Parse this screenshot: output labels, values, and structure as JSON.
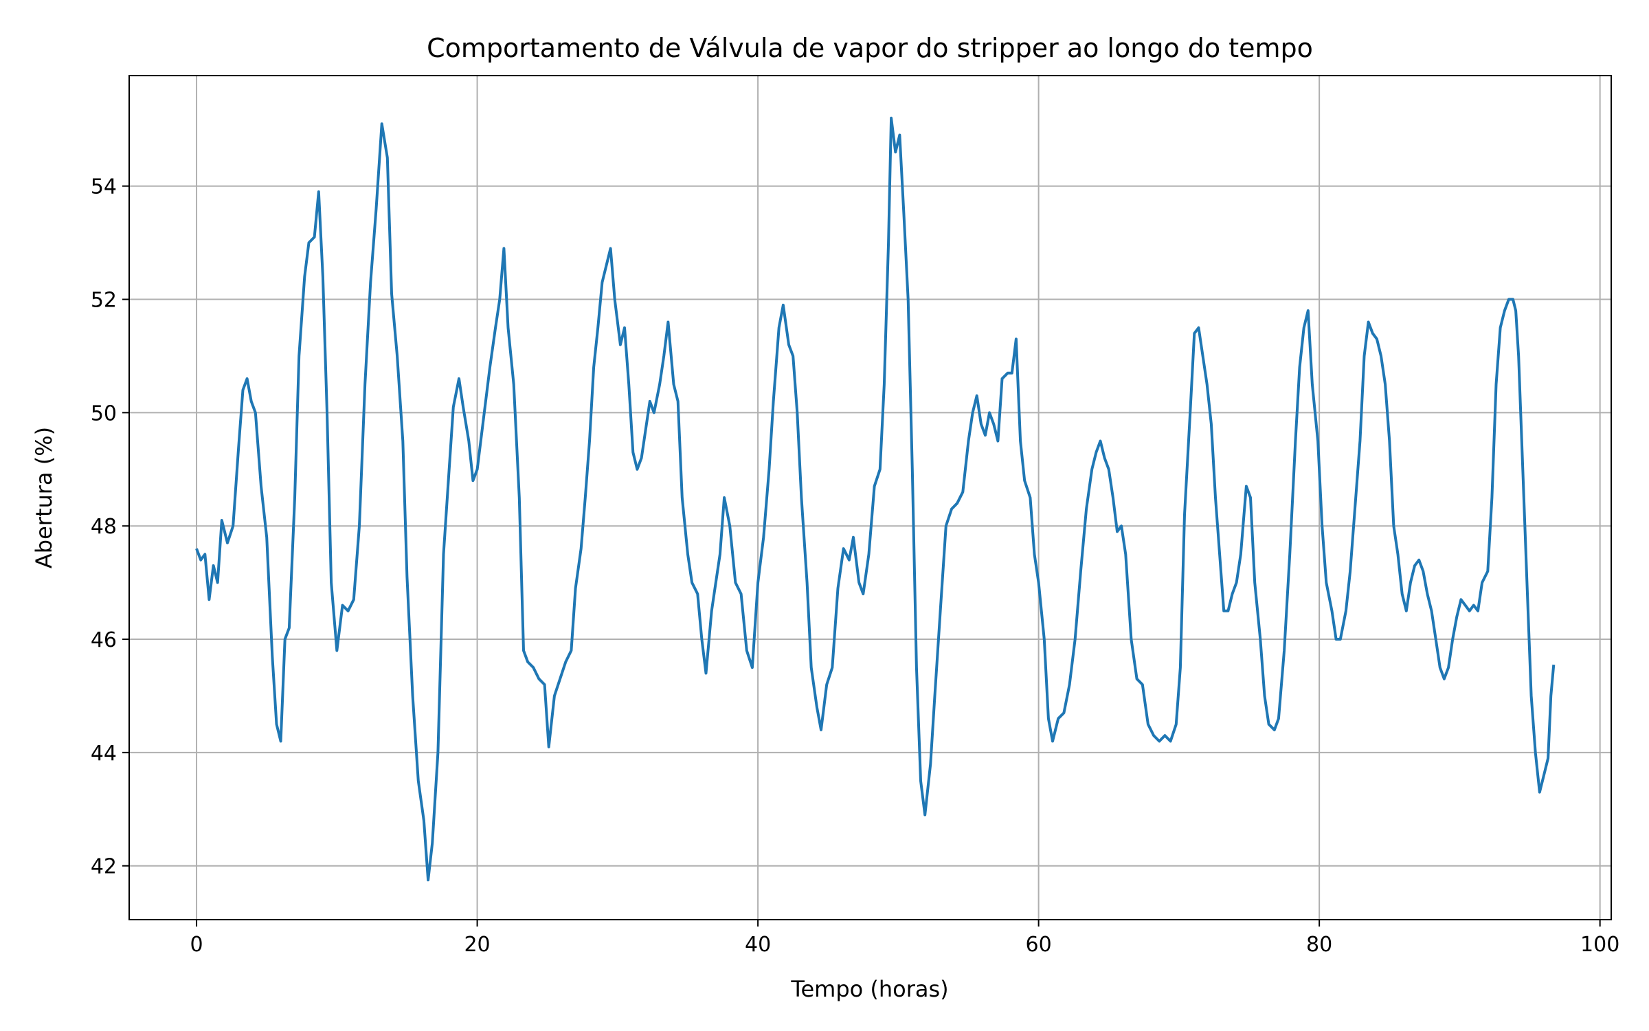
{
  "chart_data": {
    "type": "line",
    "title": "Comportamento de Válvula de vapor do stripper ao longo do tempo",
    "xlabel": "Tempo (horas)",
    "ylabel": "Abertura (%)",
    "xlim": [
      -4.8,
      100.8
    ],
    "ylim": [
      41.05,
      55.95
    ],
    "xticks": [
      0,
      20,
      40,
      60,
      80,
      100
    ],
    "yticks": [
      42,
      44,
      46,
      48,
      50,
      52,
      54
    ],
    "grid": true,
    "series": [
      {
        "color": "#1f77b4",
        "points": [
          [
            0,
            47.6
          ],
          [
            0.3,
            47.4
          ],
          [
            0.6,
            47.5
          ],
          [
            0.9,
            46.7
          ],
          [
            1.2,
            47.3
          ],
          [
            1.5,
            47.0
          ],
          [
            1.8,
            48.1
          ],
          [
            2.2,
            47.7
          ],
          [
            2.6,
            48.0
          ],
          [
            3.0,
            49.4
          ],
          [
            3.3,
            50.4
          ],
          [
            3.6,
            50.6
          ],
          [
            3.9,
            50.2
          ],
          [
            4.2,
            50.0
          ],
          [
            4.6,
            48.7
          ],
          [
            5.0,
            47.8
          ],
          [
            5.4,
            45.7
          ],
          [
            5.7,
            44.5
          ],
          [
            6.0,
            44.2
          ],
          [
            6.3,
            46.0
          ],
          [
            6.6,
            46.2
          ],
          [
            7.0,
            48.5
          ],
          [
            7.3,
            51.0
          ],
          [
            7.7,
            52.4
          ],
          [
            8.0,
            53.0
          ],
          [
            8.4,
            53.1
          ],
          [
            8.7,
            53.9
          ],
          [
            9.0,
            52.4
          ],
          [
            9.3,
            50.0
          ],
          [
            9.6,
            47.0
          ],
          [
            10.0,
            45.8
          ],
          [
            10.4,
            46.6
          ],
          [
            10.8,
            46.5
          ],
          [
            11.2,
            46.7
          ],
          [
            11.6,
            48.0
          ],
          [
            12.0,
            50.5
          ],
          [
            12.4,
            52.3
          ],
          [
            12.8,
            53.6
          ],
          [
            13.2,
            55.1
          ],
          [
            13.6,
            54.5
          ],
          [
            13.9,
            52.1
          ],
          [
            14.3,
            51.0
          ],
          [
            14.7,
            49.5
          ],
          [
            15.0,
            47.1
          ],
          [
            15.4,
            45.0
          ],
          [
            15.8,
            43.5
          ],
          [
            16.2,
            42.8
          ],
          [
            16.5,
            41.75
          ],
          [
            16.8,
            42.4
          ],
          [
            17.2,
            44.0
          ],
          [
            17.6,
            47.5
          ],
          [
            18.0,
            49.0
          ],
          [
            18.3,
            50.1
          ],
          [
            18.7,
            50.6
          ],
          [
            19.0,
            50.1
          ],
          [
            19.4,
            49.5
          ],
          [
            19.7,
            48.8
          ],
          [
            20.0,
            49.0
          ],
          [
            20.5,
            50.0
          ],
          [
            20.9,
            50.8
          ],
          [
            21.3,
            51.5
          ],
          [
            21.6,
            52.0
          ],
          [
            21.9,
            52.9
          ],
          [
            22.2,
            51.5
          ],
          [
            22.6,
            50.5
          ],
          [
            23.0,
            48.5
          ],
          [
            23.3,
            45.8
          ],
          [
            23.6,
            45.6
          ],
          [
            24.0,
            45.5
          ],
          [
            24.4,
            45.3
          ],
          [
            24.8,
            45.2
          ],
          [
            25.1,
            44.1
          ],
          [
            25.5,
            45.0
          ],
          [
            25.9,
            45.3
          ],
          [
            26.3,
            45.6
          ],
          [
            26.7,
            45.8
          ],
          [
            27.0,
            46.9
          ],
          [
            27.4,
            47.6
          ],
          [
            27.7,
            48.5
          ],
          [
            28.0,
            49.5
          ],
          [
            28.3,
            50.8
          ],
          [
            28.6,
            51.5
          ],
          [
            28.9,
            52.3
          ],
          [
            29.2,
            52.6
          ],
          [
            29.5,
            52.9
          ],
          [
            29.8,
            52.0
          ],
          [
            30.2,
            51.2
          ],
          [
            30.5,
            51.5
          ],
          [
            30.8,
            50.5
          ],
          [
            31.1,
            49.3
          ],
          [
            31.4,
            49.0
          ],
          [
            31.7,
            49.2
          ],
          [
            32.0,
            49.7
          ],
          [
            32.3,
            50.2
          ],
          [
            32.6,
            50.0
          ],
          [
            33.0,
            50.5
          ],
          [
            33.3,
            51.0
          ],
          [
            33.6,
            51.6
          ],
          [
            34.0,
            50.5
          ],
          [
            34.3,
            50.2
          ],
          [
            34.6,
            48.5
          ],
          [
            35.0,
            47.5
          ],
          [
            35.3,
            47.0
          ],
          [
            35.7,
            46.8
          ],
          [
            36.0,
            46.0
          ],
          [
            36.3,
            45.4
          ],
          [
            36.7,
            46.5
          ],
          [
            37.0,
            47.0
          ],
          [
            37.3,
            47.5
          ],
          [
            37.6,
            48.5
          ],
          [
            38.0,
            48.0
          ],
          [
            38.4,
            47.0
          ],
          [
            38.8,
            46.8
          ],
          [
            39.2,
            45.8
          ],
          [
            39.6,
            45.5
          ],
          [
            40.0,
            47.0
          ],
          [
            40.4,
            47.8
          ],
          [
            40.8,
            49.0
          ],
          [
            41.1,
            50.2
          ],
          [
            41.5,
            51.5
          ],
          [
            41.8,
            51.9
          ],
          [
            42.2,
            51.2
          ],
          [
            42.5,
            51.0
          ],
          [
            42.8,
            50.0
          ],
          [
            43.1,
            48.5
          ],
          [
            43.5,
            47.0
          ],
          [
            43.8,
            45.5
          ],
          [
            44.2,
            44.8
          ],
          [
            44.5,
            44.4
          ],
          [
            44.9,
            45.2
          ],
          [
            45.3,
            45.5
          ],
          [
            45.7,
            46.9
          ],
          [
            46.1,
            47.6
          ],
          [
            46.5,
            47.4
          ],
          [
            46.8,
            47.8
          ],
          [
            47.2,
            47.0
          ],
          [
            47.5,
            46.8
          ],
          [
            47.9,
            47.5
          ],
          [
            48.3,
            48.7
          ],
          [
            48.7,
            49.0
          ],
          [
            49.0,
            50.5
          ],
          [
            49.3,
            53.0
          ],
          [
            49.5,
            55.2
          ],
          [
            49.8,
            54.6
          ],
          [
            50.1,
            54.9
          ],
          [
            50.4,
            53.5
          ],
          [
            50.7,
            52.0
          ],
          [
            51.0,
            49.0
          ],
          [
            51.3,
            45.5
          ],
          [
            51.6,
            43.5
          ],
          [
            51.9,
            42.9
          ],
          [
            52.3,
            43.8
          ],
          [
            52.6,
            45.0
          ],
          [
            53.0,
            46.5
          ],
          [
            53.4,
            48.0
          ],
          [
            53.8,
            48.3
          ],
          [
            54.2,
            48.4
          ],
          [
            54.6,
            48.6
          ],
          [
            55.0,
            49.5
          ],
          [
            55.3,
            50.0
          ],
          [
            55.6,
            50.3
          ],
          [
            55.9,
            49.8
          ],
          [
            56.2,
            49.6
          ],
          [
            56.5,
            50.0
          ],
          [
            56.8,
            49.8
          ],
          [
            57.1,
            49.5
          ],
          [
            57.4,
            50.6
          ],
          [
            57.8,
            50.7
          ],
          [
            58.1,
            50.7
          ],
          [
            58.4,
            51.3
          ],
          [
            58.7,
            49.5
          ],
          [
            59.0,
            48.8
          ],
          [
            59.4,
            48.5
          ],
          [
            59.7,
            47.5
          ],
          [
            60.0,
            47.0
          ],
          [
            60.4,
            46.0
          ],
          [
            60.7,
            44.6
          ],
          [
            61.0,
            44.2
          ],
          [
            61.4,
            44.6
          ],
          [
            61.8,
            44.7
          ],
          [
            62.2,
            45.2
          ],
          [
            62.6,
            46.0
          ],
          [
            63.0,
            47.2
          ],
          [
            63.4,
            48.3
          ],
          [
            63.8,
            49.0
          ],
          [
            64.1,
            49.3
          ],
          [
            64.4,
            49.5
          ],
          [
            64.7,
            49.2
          ],
          [
            65.0,
            49.0
          ],
          [
            65.3,
            48.5
          ],
          [
            65.6,
            47.9
          ],
          [
            65.9,
            48.0
          ],
          [
            66.2,
            47.5
          ],
          [
            66.6,
            46.0
          ],
          [
            67.0,
            45.3
          ],
          [
            67.4,
            45.2
          ],
          [
            67.8,
            44.5
          ],
          [
            68.2,
            44.3
          ],
          [
            68.6,
            44.2
          ],
          [
            69.0,
            44.3
          ],
          [
            69.4,
            44.2
          ],
          [
            69.8,
            44.5
          ],
          [
            70.1,
            45.5
          ],
          [
            70.4,
            48.2
          ],
          [
            70.8,
            50.0
          ],
          [
            71.1,
            51.4
          ],
          [
            71.4,
            51.5
          ],
          [
            71.7,
            51.0
          ],
          [
            72.0,
            50.5
          ],
          [
            72.3,
            49.8
          ],
          [
            72.6,
            48.5
          ],
          [
            72.9,
            47.5
          ],
          [
            73.2,
            46.5
          ],
          [
            73.5,
            46.5
          ],
          [
            73.8,
            46.8
          ],
          [
            74.1,
            47.0
          ],
          [
            74.4,
            47.5
          ],
          [
            74.8,
            48.7
          ],
          [
            75.1,
            48.5
          ],
          [
            75.4,
            47.0
          ],
          [
            75.8,
            46.0
          ],
          [
            76.1,
            45.0
          ],
          [
            76.4,
            44.5
          ],
          [
            76.8,
            44.4
          ],
          [
            77.1,
            44.6
          ],
          [
            77.5,
            45.8
          ],
          [
            77.9,
            47.5
          ],
          [
            78.3,
            49.5
          ],
          [
            78.6,
            50.8
          ],
          [
            78.9,
            51.5
          ],
          [
            79.2,
            51.8
          ],
          [
            79.5,
            50.5
          ],
          [
            79.9,
            49.5
          ],
          [
            80.2,
            48.0
          ],
          [
            80.5,
            47.0
          ],
          [
            80.9,
            46.5
          ],
          [
            81.2,
            46.0
          ],
          [
            81.5,
            46.0
          ],
          [
            81.9,
            46.5
          ],
          [
            82.2,
            47.2
          ],
          [
            82.6,
            48.5
          ],
          [
            82.9,
            49.5
          ],
          [
            83.2,
            51.0
          ],
          [
            83.5,
            51.6
          ],
          [
            83.8,
            51.4
          ],
          [
            84.1,
            51.3
          ],
          [
            84.4,
            51.0
          ],
          [
            84.7,
            50.5
          ],
          [
            85.0,
            49.5
          ],
          [
            85.3,
            48.0
          ],
          [
            85.6,
            47.5
          ],
          [
            85.9,
            46.8
          ],
          [
            86.2,
            46.5
          ],
          [
            86.5,
            47.0
          ],
          [
            86.8,
            47.3
          ],
          [
            87.1,
            47.4
          ],
          [
            87.4,
            47.2
          ],
          [
            87.7,
            46.8
          ],
          [
            88.0,
            46.5
          ],
          [
            88.3,
            46.0
          ],
          [
            88.6,
            45.5
          ],
          [
            88.9,
            45.3
          ],
          [
            89.2,
            45.5
          ],
          [
            89.5,
            46.0
          ],
          [
            89.8,
            46.4
          ],
          [
            90.1,
            46.7
          ],
          [
            90.4,
            46.6
          ],
          [
            90.7,
            46.5
          ],
          [
            91.0,
            46.6
          ],
          [
            91.3,
            46.5
          ],
          [
            91.6,
            47.0
          ],
          [
            92.0,
            47.2
          ],
          [
            92.3,
            48.5
          ],
          [
            92.6,
            50.5
          ],
          [
            92.9,
            51.5
          ],
          [
            93.2,
            51.8
          ],
          [
            93.5,
            52.0
          ],
          [
            93.8,
            52.0
          ],
          [
            94.0,
            51.8
          ],
          [
            94.2,
            51.0
          ],
          [
            94.5,
            49.0
          ],
          [
            94.8,
            47.0
          ],
          [
            95.1,
            45.0
          ],
          [
            95.4,
            44.0
          ],
          [
            95.7,
            43.3
          ],
          [
            96.0,
            43.6
          ],
          [
            96.3,
            43.9
          ],
          [
            96.5,
            45.0
          ],
          [
            96.7,
            45.55
          ]
        ]
      }
    ]
  }
}
